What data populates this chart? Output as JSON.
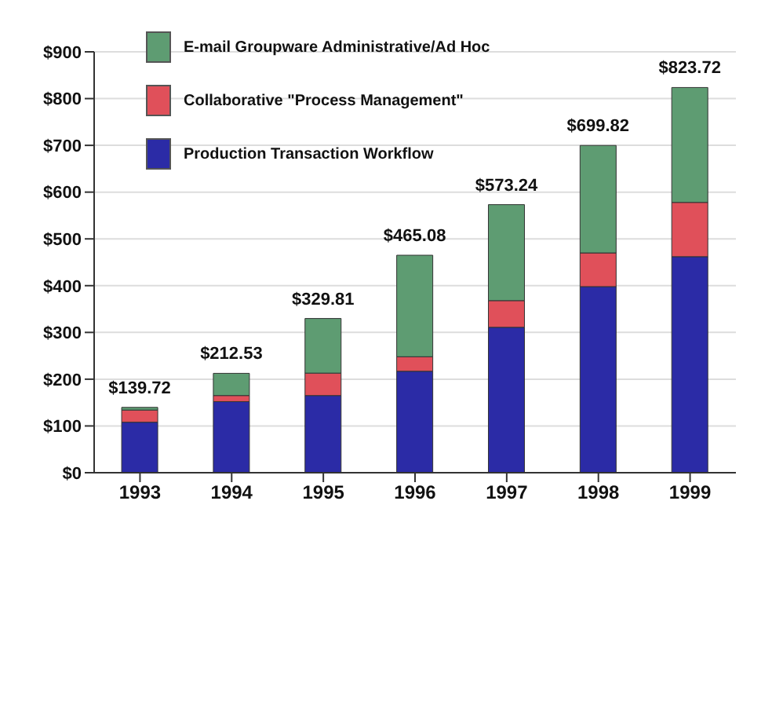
{
  "chart_data": {
    "type": "bar",
    "stacked": true,
    "categories": [
      "1993",
      "1994",
      "1995",
      "1996",
      "1997",
      "1998",
      "1999"
    ],
    "series": [
      {
        "name": "Production Transaction Workflow",
        "color": "#2b2ba6",
        "values": [
          108,
          152,
          165,
          217,
          311,
          398,
          462
        ]
      },
      {
        "name": "Collaborative \"Process Management\"",
        "color": "#e0505a",
        "values": [
          26,
          13,
          48,
          31,
          57,
          72,
          116
        ]
      },
      {
        "name": "E-mail Groupware Administrative/Ad Hoc",
        "color": "#5e9c72",
        "values": [
          5.72,
          47.53,
          116.81,
          217.08,
          205.24,
          229.82,
          245.72
        ]
      }
    ],
    "totals": [
      "$139.72",
      "$212.53",
      "$329.81",
      "$465.08",
      "$573.24",
      "$699.82",
      "$823.72"
    ],
    "ylim": [
      0,
      900
    ],
    "yticks": [
      {
        "value": 0,
        "label": "$0"
      },
      {
        "value": 100,
        "label": "$100"
      },
      {
        "value": 200,
        "label": "$200"
      },
      {
        "value": 300,
        "label": "$300"
      },
      {
        "value": 400,
        "label": "$400"
      },
      {
        "value": 500,
        "label": "$500"
      },
      {
        "value": 600,
        "label": "$600"
      },
      {
        "value": 700,
        "label": "$700"
      },
      {
        "value": 800,
        "label": "$800"
      },
      {
        "value": 900,
        "label": "$900"
      }
    ],
    "grid": "y",
    "legend": "top left"
  }
}
